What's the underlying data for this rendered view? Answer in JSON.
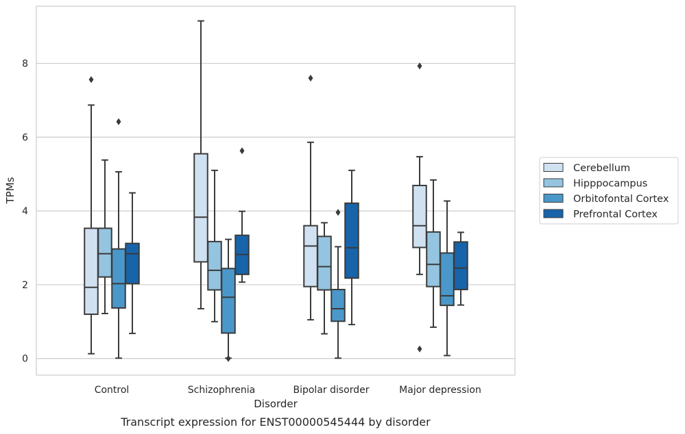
{
  "chart_data": {
    "type": "box",
    "title": "",
    "caption": "Transcript expression for ENST00000545444 by disorder",
    "xlabel": "Disorder",
    "ylabel": "TPMs",
    "ylim": [
      -0.45,
      9.55
    ],
    "yticks": [
      0,
      2,
      4,
      6,
      8
    ],
    "grid": "horizontal",
    "legend_position": "right",
    "categories": [
      "Control",
      "Schizophrenia",
      "Bipolar disorder",
      "Major depression"
    ],
    "series": [
      {
        "name": "Cerebellum",
        "color": "#d0e1f2",
        "boxes": [
          {
            "min": 0.13,
            "q1": 1.2,
            "median": 1.93,
            "q3": 3.53,
            "max": 6.87,
            "outliers": [
              7.56
            ]
          },
          {
            "min": 1.35,
            "q1": 2.62,
            "median": 3.83,
            "q3": 5.55,
            "max": 9.15,
            "outliers": []
          },
          {
            "min": 1.05,
            "q1": 1.95,
            "median": 3.05,
            "q3": 3.6,
            "max": 5.86,
            "outliers": [
              7.6
            ]
          },
          {
            "min": 2.28,
            "q1": 3.01,
            "median": 3.6,
            "q3": 4.69,
            "max": 5.47,
            "outliers": [
              0.26,
              7.93
            ]
          }
        ]
      },
      {
        "name": "Hipppocampus",
        "color": "#94c4df",
        "boxes": [
          {
            "min": 1.22,
            "q1": 2.21,
            "median": 2.84,
            "q3": 3.53,
            "max": 5.38,
            "outliers": []
          },
          {
            "min": 1.0,
            "q1": 1.86,
            "median": 2.39,
            "q3": 3.17,
            "max": 5.1,
            "outliers": []
          },
          {
            "min": 0.67,
            "q1": 1.86,
            "median": 2.49,
            "q3": 3.31,
            "max": 3.68,
            "outliers": []
          },
          {
            "min": 0.85,
            "q1": 1.95,
            "median": 2.55,
            "q3": 3.43,
            "max": 4.84,
            "outliers": []
          }
        ]
      },
      {
        "name": "Orbitofontal Cortex",
        "color": "#4a98c9",
        "boxes": [
          {
            "min": 0.01,
            "q1": 1.37,
            "median": 2.03,
            "q3": 2.97,
            "max": 5.06,
            "outliers": [
              6.42
            ]
          },
          {
            "min": 0.01,
            "q1": 0.69,
            "median": 1.66,
            "q3": 2.44,
            "max": 3.23,
            "outliers": [
              0.0
            ]
          },
          {
            "min": 0.01,
            "q1": 1.01,
            "median": 1.35,
            "q3": 1.87,
            "max": 3.03,
            "outliers": [
              3.96
            ]
          },
          {
            "min": 0.08,
            "q1": 1.44,
            "median": 1.7,
            "q3": 2.86,
            "max": 4.27,
            "outliers": []
          }
        ]
      },
      {
        "name": "Prefrontal Cortex",
        "color": "#1764ab",
        "boxes": [
          {
            "min": 0.68,
            "q1": 2.03,
            "median": 2.84,
            "q3": 3.12,
            "max": 4.49,
            "outliers": []
          },
          {
            "min": 2.07,
            "q1": 2.28,
            "median": 2.82,
            "q3": 3.34,
            "max": 3.99,
            "outliers": [
              5.63
            ]
          },
          {
            "min": 0.92,
            "q1": 2.18,
            "median": 3.0,
            "q3": 4.21,
            "max": 5.1,
            "outliers": []
          },
          {
            "min": 1.45,
            "q1": 1.87,
            "median": 2.45,
            "q3": 3.16,
            "max": 3.42,
            "outliers": []
          }
        ]
      }
    ]
  }
}
